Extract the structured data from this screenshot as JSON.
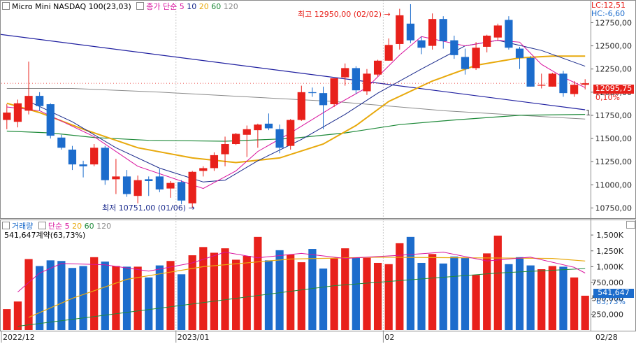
{
  "price_panel": {
    "title": "Micro Mini NASDAQ 100(23,03)",
    "ma_prefix": "종가 단순",
    "ma_periods": [
      "5",
      "10",
      "20",
      "60",
      "120"
    ],
    "lc_label": "LC:12,51",
    "hc_label": "HC:-6,60",
    "high_label": "최고 12950,00 (02/02)",
    "low_label": "최저 10751,00 (01/06)",
    "last_price": "12095,75",
    "last_change": "0,10%",
    "trendline_marker": "1"
  },
  "volume_panel": {
    "title": "거래량",
    "ma_prefix": "단순",
    "ma_periods": [
      "5",
      "20",
      "60",
      "120"
    ],
    "sub": "541,647계약(63,73%)",
    "last_volume": "541,647",
    "last_pct": "63,73%"
  },
  "colors": {
    "up": "#e8211b",
    "down": "#1c6ccc",
    "ma5": "#d9139e",
    "ma10": "#1a2a8c",
    "ma20": "#e8a90c",
    "ma60": "#1f8a3a",
    "ma120": "#8a8a8a",
    "trendline": "#2020a0",
    "title_bg": "#fff"
  },
  "chart_data": [
    {
      "type": "candlestick",
      "title": "Micro Mini NASDAQ 100(23,03)",
      "ylim": [
        10640,
        12980
      ],
      "yticks": [
        "12750,00",
        "12500,00",
        "12250,00",
        "12000,00",
        "11750,00",
        "11500,00",
        "11250,00",
        "11000,00",
        "10750,00"
      ],
      "yticks_values": [
        12750,
        12500,
        12250,
        12000,
        11750,
        11500,
        11250,
        11000,
        10750
      ],
      "x_labels": [
        "2022/12",
        "2023/01",
        "02",
        "02/28"
      ],
      "candles": [
        {
          "o": 11700,
          "h": 11870,
          "l": 11600,
          "c": 11780
        },
        {
          "o": 11680,
          "h": 11920,
          "l": 11620,
          "c": 11880
        },
        {
          "o": 11800,
          "h": 12330,
          "l": 11760,
          "c": 11960
        },
        {
          "o": 11960,
          "h": 12000,
          "l": 11800,
          "c": 11850
        },
        {
          "o": 11870,
          "h": 11880,
          "l": 11500,
          "c": 11530
        },
        {
          "o": 11510,
          "h": 11540,
          "l": 11380,
          "c": 11400
        },
        {
          "o": 11380,
          "h": 11420,
          "l": 11160,
          "c": 11220
        },
        {
          "o": 11220,
          "h": 11260,
          "l": 11080,
          "c": 11200
        },
        {
          "o": 11220,
          "h": 11440,
          "l": 11200,
          "c": 11400
        },
        {
          "o": 11400,
          "h": 11420,
          "l": 11000,
          "c": 11050
        },
        {
          "o": 11060,
          "h": 11280,
          "l": 10900,
          "c": 11090
        },
        {
          "o": 11090,
          "h": 11160,
          "l": 10870,
          "c": 10900
        },
        {
          "o": 10880,
          "h": 11100,
          "l": 10800,
          "c": 11050
        },
        {
          "o": 11060,
          "h": 11090,
          "l": 10880,
          "c": 11040
        },
        {
          "o": 11090,
          "h": 11170,
          "l": 10920,
          "c": 10950
        },
        {
          "o": 10960,
          "h": 11040,
          "l": 10860,
          "c": 11020
        },
        {
          "o": 11030,
          "h": 11050,
          "l": 10790,
          "c": 10830
        },
        {
          "o": 10800,
          "h": 11150,
          "l": 10751,
          "c": 11140
        },
        {
          "o": 11150,
          "h": 11200,
          "l": 11090,
          "c": 11180
        },
        {
          "o": 11180,
          "h": 11350,
          "l": 11150,
          "c": 11320
        },
        {
          "o": 11330,
          "h": 11520,
          "l": 11200,
          "c": 11440
        },
        {
          "o": 11440,
          "h": 11560,
          "l": 11430,
          "c": 11550
        },
        {
          "o": 11540,
          "h": 11640,
          "l": 11300,
          "c": 11600
        },
        {
          "o": 11590,
          "h": 11660,
          "l": 11400,
          "c": 11650
        },
        {
          "o": 11660,
          "h": 11770,
          "l": 11590,
          "c": 11610
        },
        {
          "o": 11600,
          "h": 11650,
          "l": 11340,
          "c": 11400
        },
        {
          "o": 11420,
          "h": 11710,
          "l": 11380,
          "c": 11700
        },
        {
          "o": 11700,
          "h": 12070,
          "l": 11690,
          "c": 12000
        },
        {
          "o": 12000,
          "h": 12050,
          "l": 11950,
          "c": 11990
        },
        {
          "o": 11990,
          "h": 12060,
          "l": 11600,
          "c": 11860
        },
        {
          "o": 11870,
          "h": 12150,
          "l": 11840,
          "c": 12150
        },
        {
          "o": 12160,
          "h": 12310,
          "l": 12070,
          "c": 12260
        },
        {
          "o": 12260,
          "h": 12280,
          "l": 11980,
          "c": 12020
        },
        {
          "o": 12010,
          "h": 12250,
          "l": 11970,
          "c": 12200
        },
        {
          "o": 12190,
          "h": 12350,
          "l": 12170,
          "c": 12340
        },
        {
          "o": 12340,
          "h": 12580,
          "l": 12340,
          "c": 12510
        },
        {
          "o": 12520,
          "h": 12900,
          "l": 12460,
          "c": 12830
        },
        {
          "o": 12740,
          "h": 12950,
          "l": 12530,
          "c": 12560
        },
        {
          "o": 12560,
          "h": 12600,
          "l": 12410,
          "c": 12480
        },
        {
          "o": 12500,
          "h": 12850,
          "l": 12460,
          "c": 12790
        },
        {
          "o": 12790,
          "h": 12820,
          "l": 12470,
          "c": 12550
        },
        {
          "o": 12560,
          "h": 12610,
          "l": 12360,
          "c": 12400
        },
        {
          "o": 12380,
          "h": 12470,
          "l": 12190,
          "c": 12250
        },
        {
          "o": 12260,
          "h": 12540,
          "l": 12240,
          "c": 12480
        },
        {
          "o": 12490,
          "h": 12620,
          "l": 12430,
          "c": 12610
        },
        {
          "o": 12590,
          "h": 12740,
          "l": 12560,
          "c": 12720
        },
        {
          "o": 12780,
          "h": 12820,
          "l": 12460,
          "c": 12480
        },
        {
          "o": 12470,
          "h": 12490,
          "l": 12250,
          "c": 12370
        },
        {
          "o": 12370,
          "h": 12390,
          "l": 12060,
          "c": 12060
        },
        {
          "o": 12070,
          "h": 12200,
          "l": 12040,
          "c": 12080
        },
        {
          "o": 12060,
          "h": 12210,
          "l": 12060,
          "c": 12200
        },
        {
          "o": 12200,
          "h": 12230,
          "l": 11950,
          "c": 11990
        },
        {
          "o": 11980,
          "h": 12120,
          "l": 11950,
          "c": 12080
        },
        {
          "o": 12080,
          "h": 12140,
          "l": 12030,
          "c": 12096
        }
      ],
      "ma": {
        "ma5": [
          [
            11840,
            0
          ],
          [
            11800,
            3
          ],
          [
            11520,
            8
          ],
          [
            11200,
            12
          ],
          [
            11000,
            17
          ],
          [
            10960,
            18
          ],
          [
            11150,
            21
          ],
          [
            11360,
            23
          ],
          [
            11560,
            26
          ],
          [
            11850,
            30
          ],
          [
            12050,
            33
          ],
          [
            12400,
            36
          ],
          [
            12600,
            38
          ],
          [
            12500,
            42
          ],
          [
            12560,
            45
          ],
          [
            12540,
            47
          ],
          [
            12300,
            49
          ],
          [
            12160,
            51
          ],
          [
            12050,
            53
          ]
        ],
        "ma10": [
          [
            11900,
            2
          ],
          [
            11680,
            6
          ],
          [
            11400,
            10
          ],
          [
            11180,
            14
          ],
          [
            11030,
            18
          ],
          [
            11050,
            20
          ],
          [
            11260,
            23
          ],
          [
            11490,
            27
          ],
          [
            11760,
            31
          ],
          [
            11990,
            34
          ],
          [
            12250,
            38
          ],
          [
            12500,
            42
          ],
          [
            12560,
            45
          ],
          [
            12450,
            49
          ],
          [
            12280,
            53
          ]
        ],
        "ma20": [
          [
            11880,
            0
          ],
          [
            11780,
            3
          ],
          [
            11600,
            7
          ],
          [
            11400,
            12
          ],
          [
            11290,
            17
          ],
          [
            11240,
            21
          ],
          [
            11290,
            25
          ],
          [
            11440,
            29
          ],
          [
            11640,
            32
          ],
          [
            11900,
            35
          ],
          [
            12120,
            39
          ],
          [
            12290,
            43
          ],
          [
            12370,
            47
          ],
          [
            12390,
            50
          ],
          [
            12390,
            53
          ]
        ],
        "ma60": [
          [
            11580,
            0
          ],
          [
            11560,
            4
          ],
          [
            11510,
            8
          ],
          [
            11480,
            13
          ],
          [
            11470,
            20
          ],
          [
            11500,
            26
          ],
          [
            11560,
            31
          ],
          [
            11650,
            36
          ],
          [
            11700,
            41
          ],
          [
            11750,
            47
          ],
          [
            11760,
            53
          ]
        ],
        "ma120": [
          [
            12040,
            0
          ],
          [
            12040,
            6
          ],
          [
            12000,
            14
          ],
          [
            11950,
            22
          ],
          [
            11900,
            30
          ],
          [
            11800,
            40
          ],
          [
            11730,
            50
          ],
          [
            11710,
            53
          ]
        ],
        "trendline": [
          [
            12630,
            -1
          ],
          [
            11810,
            53
          ]
        ]
      }
    },
    {
      "type": "bar",
      "title": "거래량",
      "ylim": [
        0,
        1700000
      ],
      "yticks": [
        "1,500K",
        "1,250K",
        "1,000K",
        "750,000",
        "500,000",
        "250,000"
      ],
      "yticks_values": [
        1500000,
        1250000,
        1000000,
        750000,
        500000,
        250000
      ],
      "values": [
        330000,
        450000,
        1120000,
        1010000,
        1100000,
        1090000,
        980000,
        1010000,
        1150000,
        1080000,
        1010000,
        1000000,
        1000000,
        830000,
        1020000,
        1090000,
        880000,
        1180000,
        1310000,
        1220000,
        1290000,
        1110000,
        1170000,
        1470000,
        1100000,
        1260000,
        1190000,
        1070000,
        1280000,
        970000,
        1130000,
        1290000,
        1140000,
        1140000,
        1060000,
        1040000,
        1370000,
        1470000,
        1060000,
        1200000,
        1050000,
        1160000,
        1140000,
        870000,
        1210000,
        1490000,
        1040000,
        1150000,
        1020000,
        960000,
        1010000,
        1000000,
        830000,
        541647
      ],
      "ma": {
        "ma5": [
          [
            600000,
            1
          ],
          [
            900000,
            3
          ],
          [
            1050000,
            5
          ],
          [
            1030000,
            9
          ],
          [
            930000,
            13
          ],
          [
            1060000,
            17
          ],
          [
            1230000,
            20
          ],
          [
            1140000,
            23
          ],
          [
            1210000,
            27
          ],
          [
            1130000,
            31
          ],
          [
            1180000,
            36
          ],
          [
            1230000,
            40
          ],
          [
            1090000,
            44
          ],
          [
            1150000,
            48
          ],
          [
            990000,
            52
          ],
          [
            900000,
            53
          ]
        ],
        "ma20": [
          [
            200000,
            2
          ],
          [
            500000,
            6
          ],
          [
            800000,
            11
          ],
          [
            1000000,
            18
          ],
          [
            1120000,
            26
          ],
          [
            1150000,
            34
          ],
          [
            1140000,
            42
          ],
          [
            1130000,
            50
          ],
          [
            1090000,
            53
          ]
        ],
        "ma60": [
          [
            60000,
            1
          ],
          [
            300000,
            12
          ],
          [
            700000,
            30
          ],
          [
            900000,
            45
          ],
          [
            970000,
            53
          ]
        ]
      }
    }
  ]
}
